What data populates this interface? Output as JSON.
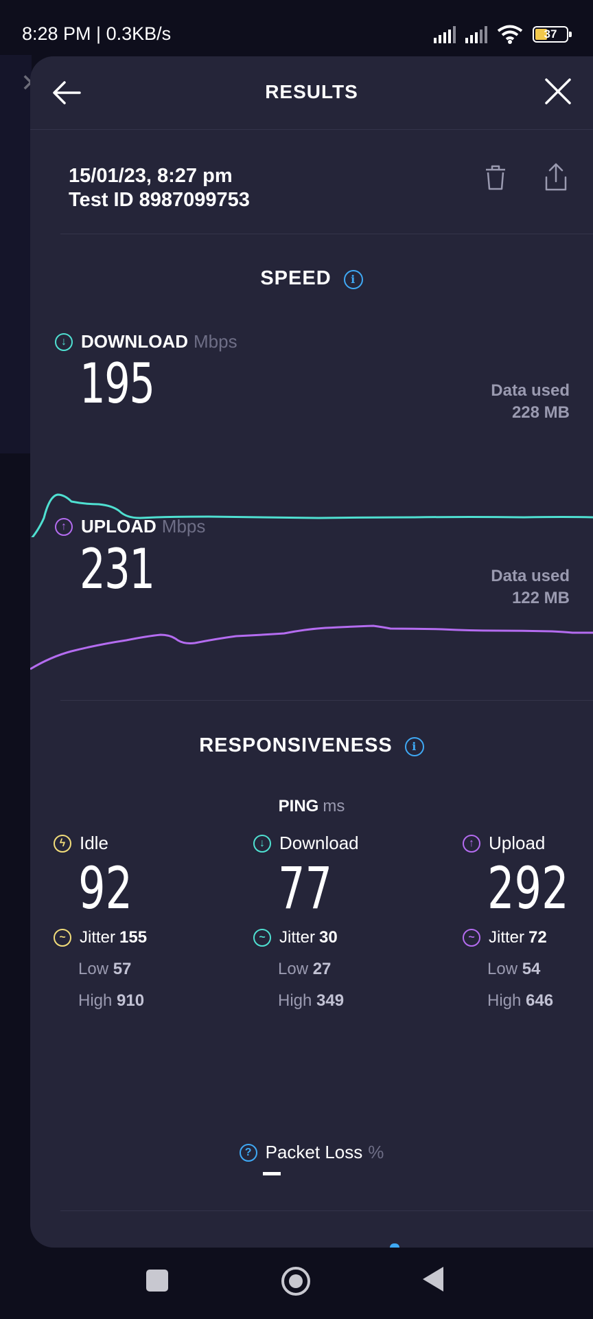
{
  "status_bar": {
    "time_and_speed": "8:28 PM | 0.3KB/s",
    "battery": "37"
  },
  "header": {
    "title": "RESULTS"
  },
  "meta": {
    "date": "15/01/23, 8:27 pm",
    "test_id": "Test ID 8987099753"
  },
  "speed": {
    "section_title": "SPEED",
    "download": {
      "label": "DOWNLOAD",
      "unit": "Mbps",
      "value": "195",
      "data_used_label": "Data used",
      "data_used_value": "228 MB",
      "color": "#4fe0d1"
    },
    "upload": {
      "label": "UPLOAD",
      "unit": "Mbps",
      "value": "231",
      "data_used_label": "Data used",
      "data_used_value": "122 MB",
      "color": "#b46cf0"
    }
  },
  "responsiveness": {
    "section_title": "RESPONSIVENESS",
    "ping_label": "PING",
    "ping_unit": "ms",
    "columns": [
      {
        "label": "Idle",
        "value": "92",
        "jitter_label": "Jitter",
        "jitter": "155",
        "low_label": "Low",
        "low": "57",
        "high_label": "High",
        "high": "910",
        "color": "#f2dd7a"
      },
      {
        "label": "Download",
        "value": "77",
        "jitter_label": "Jitter",
        "jitter": "30",
        "low_label": "Low",
        "low": "27",
        "high_label": "High",
        "high": "349",
        "color": "#4fe0d1"
      },
      {
        "label": "Upload",
        "value": "292",
        "jitter_label": "Jitter",
        "jitter": "72",
        "low_label": "Low",
        "low": "54",
        "high_label": "High",
        "high": "646",
        "color": "#b46cf0"
      }
    ],
    "packet_loss_label": "Packet Loss",
    "packet_loss_unit": "%"
  }
}
